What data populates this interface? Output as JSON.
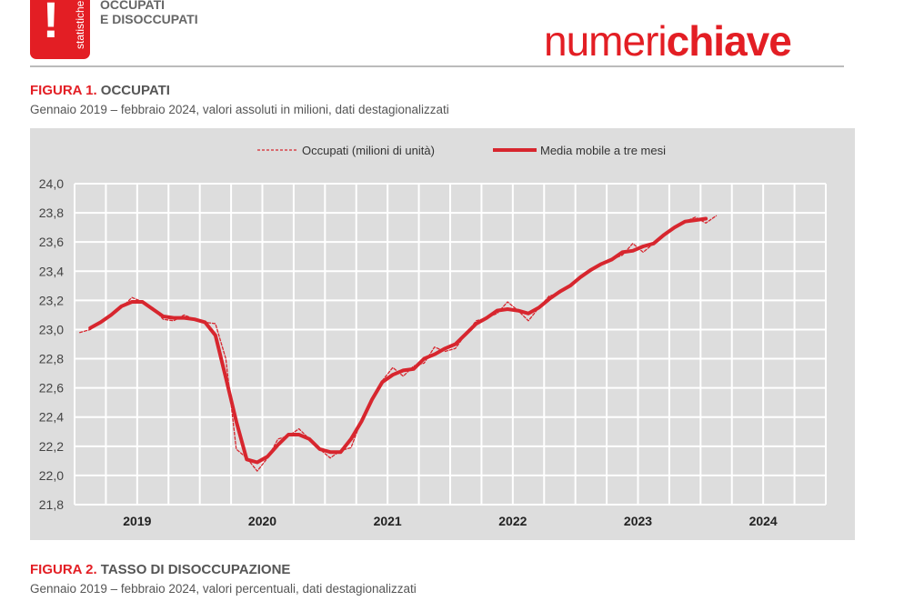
{
  "header": {
    "logo_text": "statistiche",
    "logo_mark": "!",
    "section_title_line1": "OCCUPATI",
    "section_title_line2": "E DISOCCUPATI",
    "brand_light": "numeri",
    "brand_bold": "chiave"
  },
  "figure1": {
    "number": "FIGURA 1.",
    "title": "OCCUPATI",
    "subtitle": "Gennaio 2019 – febbraio 2024, valori assoluti in milioni, dati destagionalizzati"
  },
  "figure2": {
    "number": "FIGURA 2.",
    "title": "TASSO DI DISOCCUPAZIONE",
    "subtitle": "Gennaio 2019 – febbraio 2024, valori percentuali, dati destagionalizzati"
  },
  "colors": {
    "brand": "#e31e24",
    "series": "#d7262e",
    "plot_bg": "#dddddd",
    "grid": "#ffffff"
  },
  "chart_data": {
    "type": "line",
    "x_start": "2019-01",
    "x_end": "2024-02",
    "x_frequency": "monthly",
    "x_tick_labels": [
      "2019",
      "2020",
      "2021",
      "2022",
      "2023",
      "2024"
    ],
    "y_tick_labels": [
      "21,8",
      "22,0",
      "22,2",
      "22,4",
      "22,6",
      "22,8",
      "23,0",
      "23,2",
      "23,4",
      "23,6",
      "23,8",
      "24,0"
    ],
    "ylim": [
      21.8,
      24.0
    ],
    "xlim": [
      "2019-01",
      "2024-12"
    ],
    "grid": true,
    "legend_position": "top",
    "series": [
      {
        "name": "Occupati (milioni di unità)",
        "style": "dashed",
        "values": [
          22.98,
          23.0,
          23.05,
          23.1,
          23.15,
          23.22,
          23.19,
          23.15,
          23.07,
          23.06,
          23.1,
          23.07,
          23.05,
          23.04,
          22.8,
          22.18,
          22.12,
          22.03,
          22.12,
          22.25,
          22.27,
          22.32,
          22.25,
          22.18,
          22.12,
          22.17,
          22.19,
          22.38,
          22.53,
          22.65,
          22.74,
          22.68,
          22.75,
          22.77,
          22.88,
          22.85,
          22.87,
          22.97,
          23.06,
          23.08,
          23.11,
          23.19,
          23.13,
          23.06,
          23.15,
          23.23,
          23.25,
          23.3,
          23.36,
          23.41,
          23.45,
          23.48,
          23.51,
          23.59,
          23.53,
          23.59,
          23.66,
          23.7,
          23.74,
          23.77,
          23.73,
          23.78
        ]
      },
      {
        "name": "Media mobile a tre mesi",
        "style": "solid",
        "values": [
          null,
          23.01,
          23.05,
          23.1,
          23.16,
          23.19,
          23.19,
          23.14,
          23.09,
          23.08,
          23.08,
          23.07,
          23.05,
          22.96,
          22.67,
          22.37,
          22.11,
          22.09,
          22.13,
          22.21,
          22.28,
          22.28,
          22.25,
          22.18,
          22.16,
          22.16,
          22.25,
          22.37,
          22.52,
          22.64,
          22.69,
          22.72,
          22.73,
          22.8,
          22.83,
          22.87,
          22.9,
          22.97,
          23.04,
          23.08,
          23.13,
          23.14,
          23.13,
          23.11,
          23.15,
          23.21,
          23.26,
          23.3,
          23.36,
          23.41,
          23.45,
          23.48,
          23.53,
          23.54,
          23.57,
          23.59,
          23.65,
          23.7,
          23.74,
          23.75,
          23.76,
          null
        ]
      }
    ]
  }
}
